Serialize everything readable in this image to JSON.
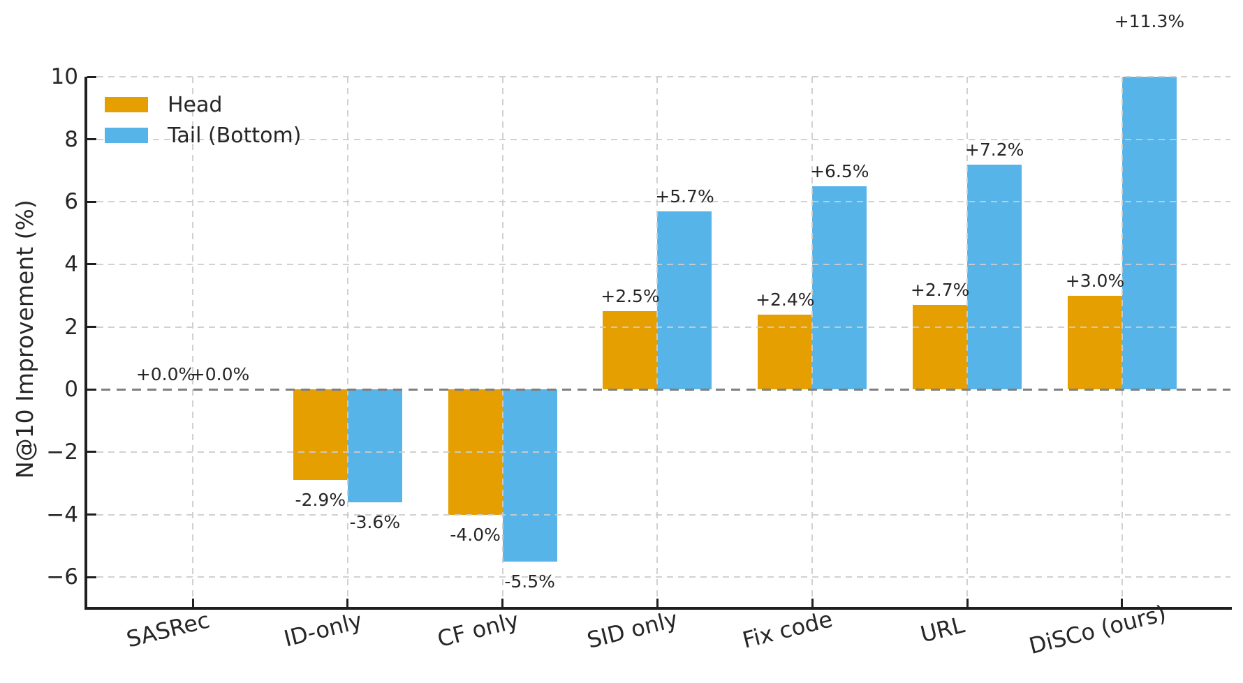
{
  "chart_data": {
    "type": "bar",
    "title": "",
    "xlabel": "",
    "ylabel": "N@10 Improvement (%)",
    "categories": [
      "SASRec",
      "ID-only",
      "CF only",
      "SID only",
      "Fix code",
      "URL",
      "DiSCo (ours)"
    ],
    "series": [
      {
        "name": "Head",
        "color": "#E69F00",
        "values": [
          0.0,
          -2.9,
          -4.0,
          2.5,
          2.4,
          2.7,
          3.0
        ],
        "value_labels": [
          "+0.0%",
          "-2.9%",
          "-4.0%",
          "+2.5%",
          "+2.4%",
          "+2.7%",
          "+3.0%"
        ]
      },
      {
        "name": "Tail (Bottom)",
        "color": "#56B4E9",
        "values": [
          0.0,
          -3.6,
          -5.5,
          5.7,
          6.5,
          7.2,
          11.3
        ],
        "value_labels": [
          "+0.0%",
          "-3.6%",
          "-5.5%",
          "+5.7%",
          "+6.5%",
          "+7.2%",
          "+11.3%"
        ]
      }
    ],
    "ytick_values": [
      10,
      8,
      6,
      4,
      2,
      0,
      -2,
      -4,
      -6
    ],
    "ytick_labels": [
      "10",
      "8",
      "6",
      "4",
      "2",
      "0",
      "−2",
      "−4",
      "−6"
    ],
    "ylim": [
      -7,
      10
    ],
    "grid": {
      "visible": true,
      "style": "dashed",
      "color": "#cccccc",
      "above_bars": true
    },
    "zero_line": {
      "style": "dashed",
      "color": "#7f7f7f"
    },
    "legend": {
      "position": "upper left",
      "frame": false,
      "entries": [
        "Head",
        "Tail (Bottom)"
      ]
    },
    "spine_color": "#1f1f1f",
    "text_color": "#262626"
  }
}
